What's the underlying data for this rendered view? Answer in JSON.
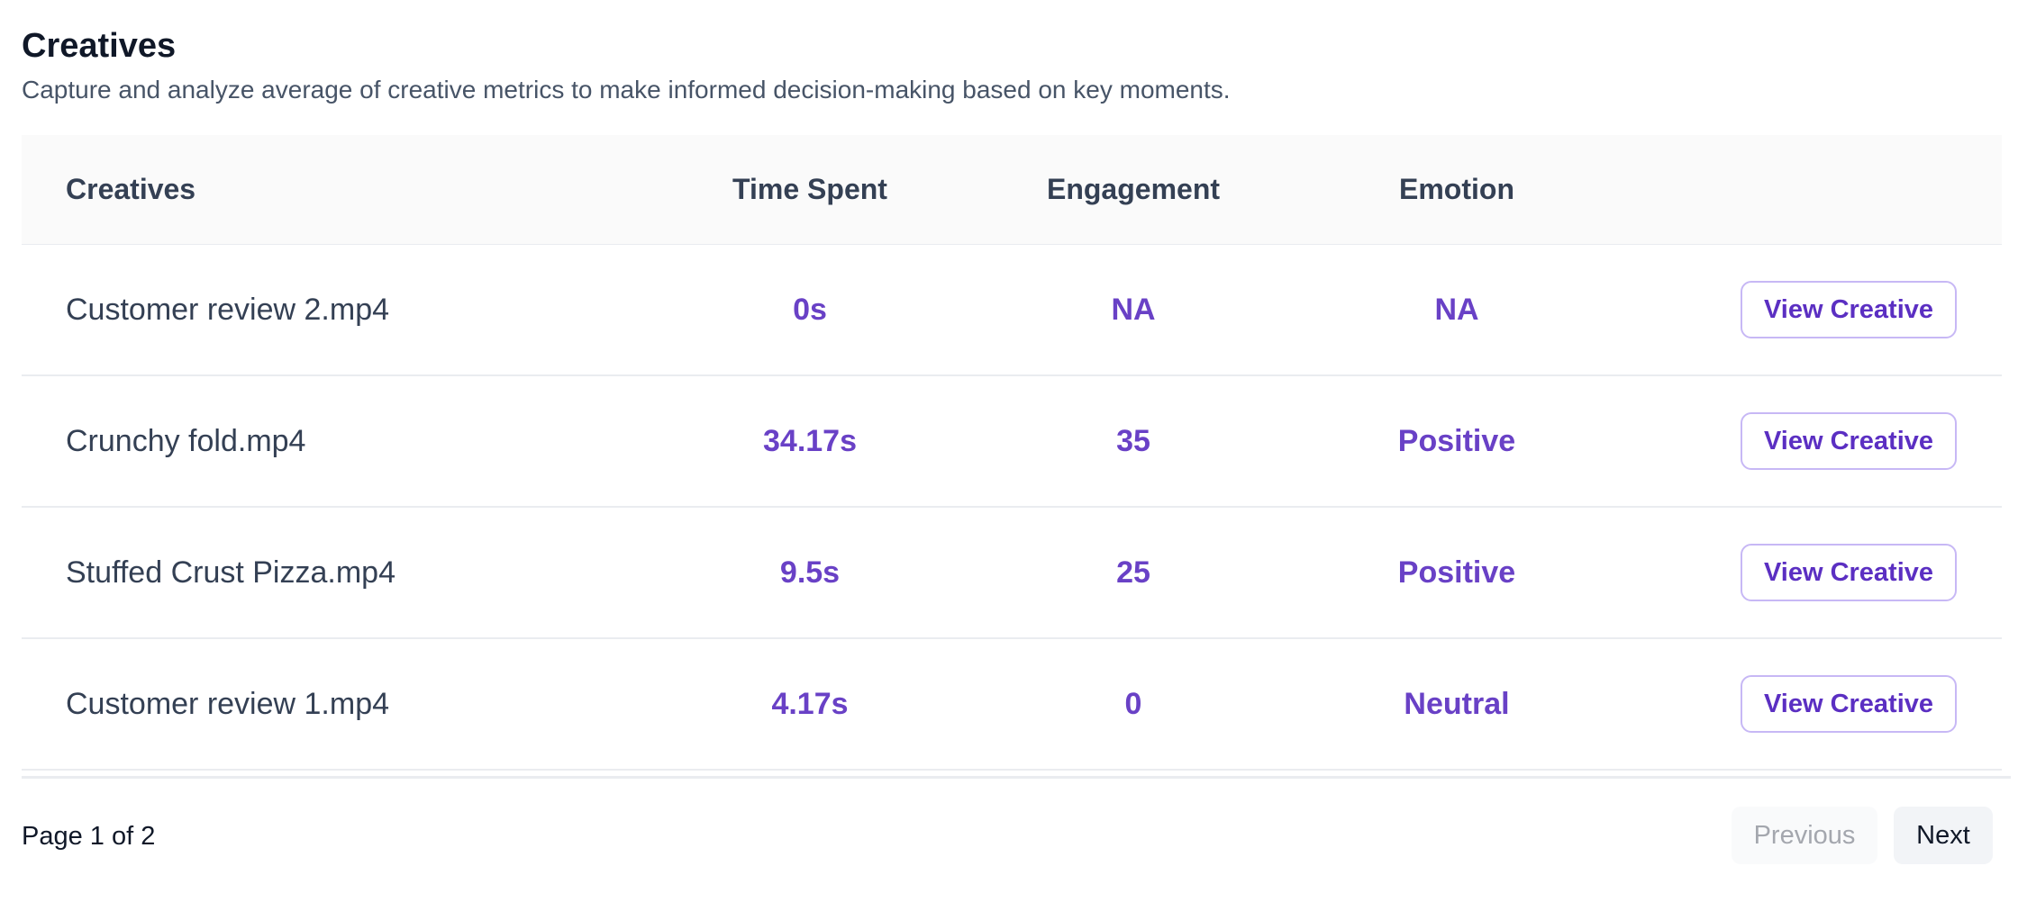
{
  "header": {
    "title": "Creatives",
    "subtitle": "Capture and analyze average of creative metrics to make informed decision-making based on key moments."
  },
  "table": {
    "columns": {
      "creatives": "Creatives",
      "time_spent": "Time Spent",
      "engagement": "Engagement",
      "emotion": "Emotion"
    },
    "rows": [
      {
        "name": "Customer review 2.mp4",
        "time_spent": "0s",
        "engagement": "NA",
        "emotion": "NA",
        "action": "View Creative"
      },
      {
        "name": "Crunchy fold.mp4",
        "time_spent": "34.17s",
        "engagement": "35",
        "emotion": "Positive",
        "action": "View Creative"
      },
      {
        "name": "Stuffed Crust Pizza.mp4",
        "time_spent": "9.5s",
        "engagement": "25",
        "emotion": "Positive",
        "action": "View Creative"
      },
      {
        "name": "Customer review 1.mp4",
        "time_spent": "4.17s",
        "engagement": "0",
        "emotion": "Neutral",
        "action": "View Creative"
      }
    ]
  },
  "pagination": {
    "page_info": "Page 1 of 2",
    "previous_label": "Previous",
    "next_label": "Next",
    "previous_disabled": true
  },
  "colors": {
    "accent": "#6941c6",
    "button_border": "#c7b8f5",
    "header_bg": "#fafafa",
    "divider": "#eaecf0"
  }
}
